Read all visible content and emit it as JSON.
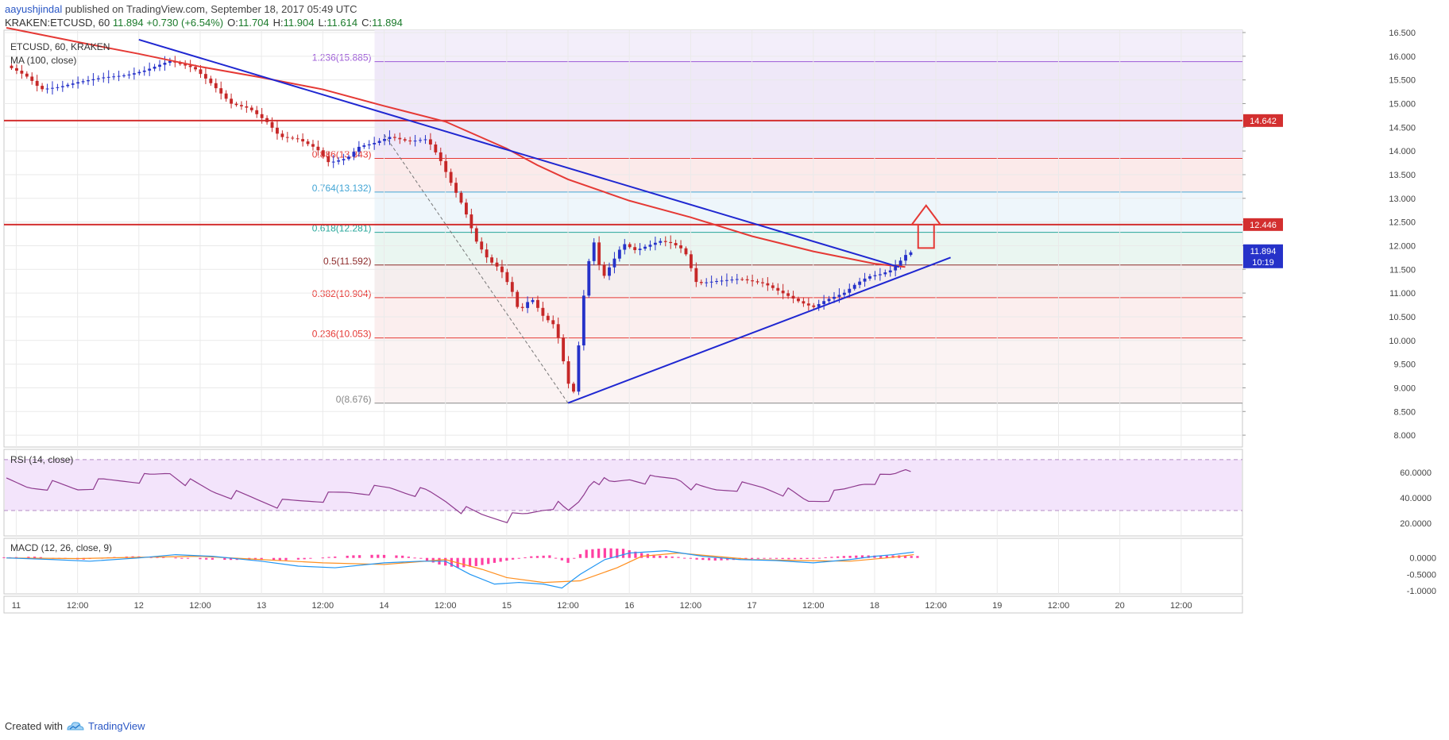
{
  "header": {
    "user": "aayushjindal",
    "published": "published on TradingView.com, September 18, 2017 05:49 UTC",
    "symbol": "KRAKEN:ETCUSD, 60",
    "last": "11.894",
    "change": "+0.730 (+6.54%)",
    "o_label": "O:",
    "o": "11.704",
    "h_label": "H:",
    "h": "11.904",
    "l_label": "L:",
    "l": "11.614",
    "c_label": "C:",
    "c": "11.894"
  },
  "footer": {
    "created_with": "Created with",
    "brand": "TradingView"
  },
  "colors": {
    "up": "#2632c9",
    "down": "#c62828",
    "ma": "#e53935",
    "trend": "#1f27d1",
    "rsi": "#8e3a8e",
    "rsi_bg": "#f3e4fb",
    "macd": "#2196f3",
    "signal": "#ff8f1f",
    "hist": "#ff3fa2",
    "resistance": "#d32f2f",
    "last_price_bg": "#2632c9"
  },
  "chart_data": {
    "type": "candlestick",
    "title": "ETCUSD, 60, KRAKEN",
    "indicator_label": "MA (100, close)",
    "price_axis": {
      "range": [
        7.75,
        16.55
      ],
      "ticks": [
        "16.500",
        "16.000",
        "15.500",
        "15.000",
        "14.500",
        "14.000",
        "13.500",
        "13.000",
        "12.500",
        "12.000",
        "11.500",
        "11.000",
        "10.500",
        "10.000",
        "9.500",
        "9.000",
        "8.500",
        "8.000"
      ]
    },
    "time_axis": {
      "range": [
        10.9,
        21.0
      ],
      "ticks": [
        {
          "t": 11,
          "label": "11"
        },
        {
          "t": 11.5,
          "label": "12:00"
        },
        {
          "t": 12,
          "label": "12"
        },
        {
          "t": 12.5,
          "label": "12:00"
        },
        {
          "t": 13,
          "label": "13"
        },
        {
          "t": 13.5,
          "label": "12:00"
        },
        {
          "t": 14,
          "label": "14"
        },
        {
          "t": 14.5,
          "label": "12:00"
        },
        {
          "t": 15,
          "label": "15"
        },
        {
          "t": 15.5,
          "label": "12:00"
        },
        {
          "t": 16,
          "label": "16"
        },
        {
          "t": 16.5,
          "label": "12:00"
        },
        {
          "t": 17,
          "label": "17"
        },
        {
          "t": 17.5,
          "label": "12:00"
        },
        {
          "t": 18,
          "label": "18"
        },
        {
          "t": 18.5,
          "label": "12:00"
        },
        {
          "t": 19,
          "label": "19"
        },
        {
          "t": 19.5,
          "label": "12:00"
        },
        {
          "t": 20,
          "label": "20"
        },
        {
          "t": 20.5,
          "label": "12:00"
        }
      ]
    },
    "price_path": [
      [
        10.92,
        15.8
      ],
      [
        11.0,
        15.7
      ],
      [
        11.1,
        15.55
      ],
      [
        11.2,
        15.3
      ],
      [
        11.35,
        15.35
      ],
      [
        11.5,
        15.45
      ],
      [
        11.7,
        15.55
      ],
      [
        11.9,
        15.6
      ],
      [
        12.05,
        15.7
      ],
      [
        12.25,
        15.9
      ],
      [
        12.45,
        15.75
      ],
      [
        12.6,
        15.4
      ],
      [
        12.75,
        15.0
      ],
      [
        12.9,
        14.9
      ],
      [
        13.05,
        14.6
      ],
      [
        13.15,
        14.3
      ],
      [
        13.3,
        14.25
      ],
      [
        13.45,
        14.05
      ],
      [
        13.55,
        13.75
      ],
      [
        13.7,
        13.85
      ],
      [
        13.8,
        14.1
      ],
      [
        13.9,
        14.15
      ],
      [
        14.05,
        14.3
      ],
      [
        14.2,
        14.2
      ],
      [
        14.35,
        14.25
      ],
      [
        14.45,
        13.85
      ],
      [
        14.55,
        13.3
      ],
      [
        14.65,
        12.8
      ],
      [
        14.75,
        12.1
      ],
      [
        14.85,
        11.7
      ],
      [
        14.95,
        11.5
      ],
      [
        15.05,
        11.0
      ],
      [
        15.1,
        10.6
      ],
      [
        15.2,
        10.9
      ],
      [
        15.3,
        10.5
      ],
      [
        15.4,
        10.3
      ],
      [
        15.5,
        9.1
      ],
      [
        15.55,
        8.9
      ],
      [
        15.62,
        10.8
      ],
      [
        15.7,
        12.2
      ],
      [
        15.78,
        11.3
      ],
      [
        15.85,
        11.6
      ],
      [
        15.95,
        12.05
      ],
      [
        16.05,
        11.9
      ],
      [
        16.15,
        12.0
      ],
      [
        16.25,
        12.1
      ],
      [
        16.35,
        12.05
      ],
      [
        16.45,
        11.9
      ],
      [
        16.55,
        11.2
      ],
      [
        16.7,
        11.25
      ],
      [
        16.9,
        11.3
      ],
      [
        17.1,
        11.2
      ],
      [
        17.25,
        11.0
      ],
      [
        17.4,
        10.8
      ],
      [
        17.5,
        10.7
      ],
      [
        17.6,
        10.85
      ],
      [
        17.75,
        11.0
      ],
      [
        17.85,
        11.2
      ],
      [
        17.95,
        11.35
      ],
      [
        18.05,
        11.4
      ],
      [
        18.15,
        11.5
      ],
      [
        18.25,
        11.8
      ],
      [
        18.32,
        11.894
      ]
    ],
    "ma100": [
      [
        10.92,
        16.6
      ],
      [
        11.5,
        16.3
      ],
      [
        12.0,
        16.05
      ],
      [
        12.5,
        15.78
      ],
      [
        13.0,
        15.55
      ],
      [
        13.5,
        15.3
      ],
      [
        14.0,
        14.95
      ],
      [
        14.5,
        14.62
      ],
      [
        15.0,
        14.05
      ],
      [
        15.25,
        13.7
      ],
      [
        15.5,
        13.4
      ],
      [
        16.0,
        12.95
      ],
      [
        16.5,
        12.6
      ],
      [
        17.0,
        12.2
      ],
      [
        17.5,
        11.88
      ],
      [
        18.0,
        11.62
      ],
      [
        18.25,
        11.55
      ]
    ],
    "fibonacci": [
      {
        "ratio": "1.236",
        "value": "15.885",
        "price": 15.885,
        "color": "#9c5ad6"
      },
      {
        "ratio": "0.886",
        "value": "13.843",
        "price": 13.843,
        "color": "#e53935"
      },
      {
        "ratio": "0.764",
        "value": "13.132",
        "price": 13.132,
        "color": "#42a5d5"
      },
      {
        "ratio": "0.618",
        "value": "12.281",
        "price": 12.281,
        "color": "#26a69a"
      },
      {
        "ratio": "0.5",
        "value": "11.592",
        "price": 11.592,
        "color": "#8d2b2b"
      },
      {
        "ratio": "0.382",
        "value": "10.904",
        "price": 10.904,
        "color": "#e53935"
      },
      {
        "ratio": "0.236",
        "value": "10.053",
        "price": 10.053,
        "color": "#e53935"
      },
      {
        "ratio": "0",
        "value": "8.676",
        "price": 8.676,
        "color": "#888888"
      }
    ],
    "horizontal_levels": [
      {
        "price": 14.642,
        "label": "14.642"
      },
      {
        "price": 12.446,
        "label": "12.446"
      }
    ],
    "last_price": {
      "price": 11.894,
      "label": "11.894",
      "countdown": "10:19"
    },
    "trendlines": [
      {
        "name": "bearish",
        "from": [
          12.0,
          16.35
        ],
        "to": [
          18.2,
          11.55
        ]
      },
      {
        "name": "bullish",
        "from": [
          15.5,
          8.68
        ],
        "to": [
          18.62,
          11.75
        ]
      }
    ],
    "arrow": {
      "t": 18.42,
      "price_top": 12.85,
      "price_bottom": 11.95
    },
    "rsi": {
      "label": "RSI (14, close)",
      "ticks": [
        "60.0000",
        "40.0000",
        "20.0000"
      ],
      "range": [
        10,
        78
      ],
      "bands": [
        30,
        70
      ],
      "values": [
        [
          10.92,
          52
        ],
        [
          11.1,
          48
        ],
        [
          11.3,
          50
        ],
        [
          11.5,
          47
        ],
        [
          11.7,
          52
        ],
        [
          11.9,
          54
        ],
        [
          12.1,
          56
        ],
        [
          12.25,
          60
        ],
        [
          12.4,
          52
        ],
        [
          12.6,
          45
        ],
        [
          12.8,
          42
        ],
        [
          13.0,
          38
        ],
        [
          13.15,
          35
        ],
        [
          13.3,
          37
        ],
        [
          13.5,
          40
        ],
        [
          13.7,
          44
        ],
        [
          13.9,
          46
        ],
        [
          14.05,
          47
        ],
        [
          14.2,
          45
        ],
        [
          14.35,
          44
        ],
        [
          14.5,
          38
        ],
        [
          14.65,
          30
        ],
        [
          14.8,
          26
        ],
        [
          15.0,
          24
        ],
        [
          15.15,
          26
        ],
        [
          15.3,
          32
        ],
        [
          15.4,
          35
        ],
        [
          15.5,
          28
        ],
        [
          15.6,
          38
        ],
        [
          15.7,
          56
        ],
        [
          15.85,
          50
        ],
        [
          16.0,
          55
        ],
        [
          16.2,
          54
        ],
        [
          16.4,
          56
        ],
        [
          16.55,
          47
        ],
        [
          16.7,
          46
        ],
        [
          16.9,
          49
        ],
        [
          17.1,
          48
        ],
        [
          17.3,
          44
        ],
        [
          17.45,
          37
        ],
        [
          17.6,
          40
        ],
        [
          17.75,
          45
        ],
        [
          17.9,
          52
        ],
        [
          18.05,
          55
        ],
        [
          18.15,
          57
        ],
        [
          18.25,
          63
        ],
        [
          18.32,
          62
        ]
      ]
    },
    "macd": {
      "label": "MACD (12, 26, close, 9)",
      "ticks": [
        "0.0000",
        "-0.5000",
        "-1.0000"
      ],
      "range": [
        -1.1,
        0.6
      ],
      "macd": [
        [
          10.92,
          0.0
        ],
        [
          11.3,
          -0.05
        ],
        [
          11.6,
          -0.1
        ],
        [
          12.0,
          0.0
        ],
        [
          12.3,
          0.1
        ],
        [
          12.6,
          0.05
        ],
        [
          13.0,
          -0.1
        ],
        [
          13.3,
          -0.25
        ],
        [
          13.6,
          -0.3
        ],
        [
          14.0,
          -0.15
        ],
        [
          14.3,
          -0.1
        ],
        [
          14.5,
          -0.1
        ],
        [
          14.7,
          -0.5
        ],
        [
          14.9,
          -0.8
        ],
        [
          15.1,
          -0.75
        ],
        [
          15.3,
          -0.8
        ],
        [
          15.45,
          -0.92
        ],
        [
          15.6,
          -0.5
        ],
        [
          15.8,
          -0.05
        ],
        [
          16.0,
          0.15
        ],
        [
          16.3,
          0.22
        ],
        [
          16.6,
          0.05
        ],
        [
          16.9,
          -0.05
        ],
        [
          17.2,
          -0.08
        ],
        [
          17.5,
          -0.15
        ],
        [
          17.8,
          -0.05
        ],
        [
          18.0,
          0.05
        ],
        [
          18.15,
          0.1
        ],
        [
          18.32,
          0.18
        ]
      ],
      "signal": [
        [
          10.92,
          0.0
        ],
        [
          11.5,
          -0.02
        ],
        [
          12.0,
          0.02
        ],
        [
          12.5,
          0.05
        ],
        [
          13.0,
          -0.05
        ],
        [
          13.5,
          -0.15
        ],
        [
          14.0,
          -0.2
        ],
        [
          14.5,
          -0.05
        ],
        [
          14.8,
          -0.35
        ],
        [
          15.0,
          -0.6
        ],
        [
          15.3,
          -0.75
        ],
        [
          15.6,
          -0.7
        ],
        [
          15.9,
          -0.3
        ],
        [
          16.1,
          0.05
        ],
        [
          16.4,
          0.15
        ],
        [
          16.7,
          0.05
        ],
        [
          17.0,
          -0.05
        ],
        [
          17.4,
          -0.08
        ],
        [
          17.8,
          -0.1
        ],
        [
          18.1,
          0.0
        ],
        [
          18.32,
          0.1
        ]
      ],
      "hist": [
        [
          10.95,
          0.02
        ],
        [
          11.15,
          0.04
        ],
        [
          11.35,
          -0.02
        ],
        [
          11.55,
          -0.05
        ],
        [
          11.75,
          0.02
        ],
        [
          11.95,
          0.05
        ],
        [
          12.15,
          0.04
        ],
        [
          12.35,
          0.0
        ],
        [
          12.55,
          -0.05
        ],
        [
          12.75,
          -0.06
        ],
        [
          12.95,
          -0.06
        ],
        [
          13.15,
          -0.08
        ],
        [
          13.35,
          -0.04
        ],
        [
          13.55,
          0.03
        ],
        [
          13.75,
          0.08
        ],
        [
          13.95,
          0.1
        ],
        [
          14.15,
          0.07
        ],
        [
          14.3,
          -0.02
        ],
        [
          14.45,
          -0.2
        ],
        [
          14.6,
          -0.3
        ],
        [
          14.75,
          -0.25
        ],
        [
          14.9,
          -0.15
        ],
        [
          15.05,
          -0.05
        ],
        [
          15.2,
          0.05
        ],
        [
          15.35,
          0.08
        ],
        [
          15.5,
          -0.15
        ],
        [
          15.65,
          0.25
        ],
        [
          15.8,
          0.3
        ],
        [
          15.95,
          0.28
        ],
        [
          16.1,
          0.15
        ],
        [
          16.25,
          0.07
        ],
        [
          16.4,
          0.03
        ],
        [
          16.55,
          -0.05
        ],
        [
          16.7,
          -0.08
        ],
        [
          16.85,
          -0.06
        ],
        [
          17.0,
          -0.03
        ],
        [
          17.15,
          -0.02
        ],
        [
          17.3,
          -0.04
        ],
        [
          17.45,
          -0.03
        ],
        [
          17.6,
          0.02
        ],
        [
          17.75,
          0.06
        ],
        [
          17.9,
          0.08
        ],
        [
          18.05,
          0.07
        ],
        [
          18.2,
          0.08
        ],
        [
          18.3,
          0.06
        ]
      ]
    }
  }
}
